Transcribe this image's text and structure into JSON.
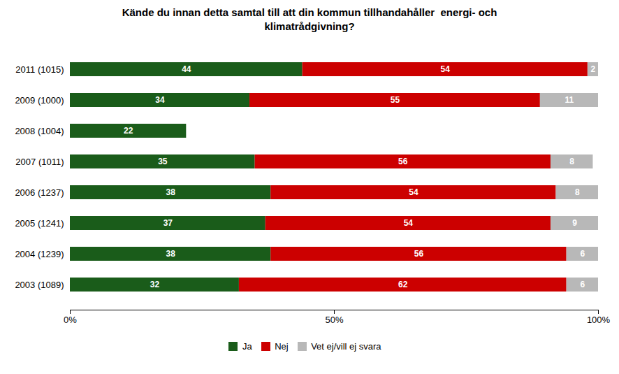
{
  "chart_data": {
    "type": "bar",
    "orientation": "horizontal",
    "stacked": true,
    "data_labels": true,
    "grid": false,
    "legend": "bottom",
    "title": "Kände du innan detta samtal till att din kommun tillhandahåller  energi- och\nklimatrådgivning?",
    "categories": [
      "2011 (1015)",
      "2009 (1000)",
      "2008 (1004)",
      "2007 (1011)",
      "2006 (1237)",
      "2005 (1241)",
      "2004 (1239)",
      "2003 (1089)"
    ],
    "series": [
      {
        "name": "Ja",
        "color": "#1a5c1a",
        "values": [
          44,
          34,
          22,
          35,
          38,
          37,
          38,
          32
        ]
      },
      {
        "name": "Nej",
        "color": "#cc0000",
        "values": [
          54,
          55,
          0,
          56,
          54,
          54,
          56,
          62
        ]
      },
      {
        "name": "Vet ej/vill ej svara",
        "color": "#b8b8b8",
        "values": [
          2,
          11,
          0,
          8,
          8,
          9,
          6,
          6
        ]
      }
    ],
    "xlim": [
      0,
      100
    ],
    "xticks": [
      {
        "value": 0,
        "label": "0%"
      },
      {
        "value": 50,
        "label": "50%"
      },
      {
        "value": 100,
        "label": "100%"
      }
    ]
  }
}
